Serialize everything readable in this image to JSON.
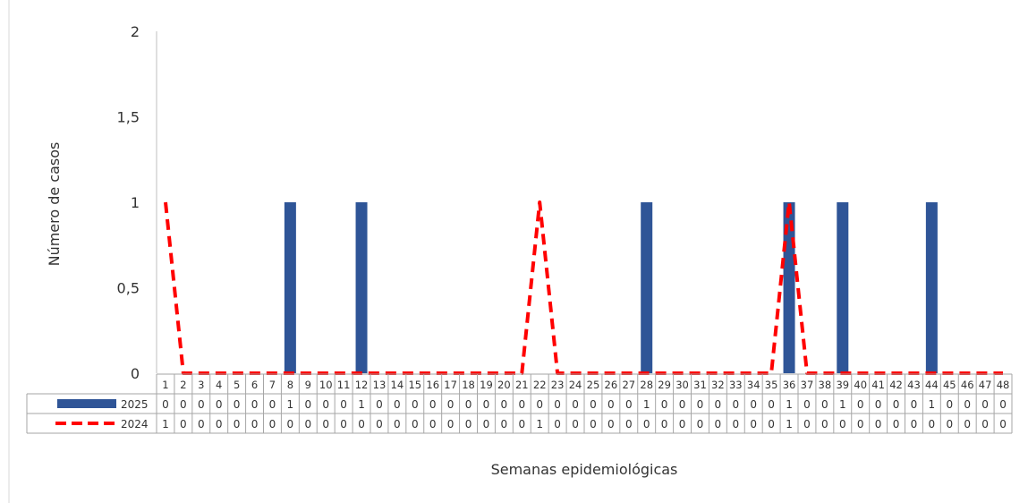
{
  "chart_data": {
    "type": "bar",
    "title": "",
    "xlabel": "Semanas epidemiológicas",
    "ylabel": "Número de casos",
    "ylim": [
      0,
      2
    ],
    "yticks": [
      "0",
      "0,5",
      "1",
      "1,5",
      "2"
    ],
    "categories": [
      "1",
      "2",
      "3",
      "4",
      "5",
      "6",
      "7",
      "8",
      "9",
      "10",
      "11",
      "12",
      "13",
      "14",
      "15",
      "16",
      "17",
      "18",
      "19",
      "20",
      "21",
      "22",
      "23",
      "24",
      "25",
      "26",
      "27",
      "28",
      "29",
      "30",
      "31",
      "32",
      "33",
      "34",
      "35",
      "36",
      "37",
      "38",
      "39",
      "40",
      "41",
      "42",
      "43",
      "44",
      "45",
      "46",
      "47",
      "48"
    ],
    "series": [
      {
        "name": "2025",
        "kind": "bar",
        "color": "#2F5597",
        "values": [
          0,
          0,
          0,
          0,
          0,
          0,
          0,
          1,
          0,
          0,
          0,
          1,
          0,
          0,
          0,
          0,
          0,
          0,
          0,
          0,
          0,
          0,
          0,
          0,
          0,
          0,
          0,
          1,
          0,
          0,
          0,
          0,
          0,
          0,
          0,
          1,
          0,
          0,
          1,
          0,
          0,
          0,
          0,
          1,
          0,
          0,
          0,
          0
        ]
      },
      {
        "name": "2024",
        "kind": "line",
        "style": "dashed",
        "color": "#FF0000",
        "values": [
          1,
          0,
          0,
          0,
          0,
          0,
          0,
          0,
          0,
          0,
          0,
          0,
          0,
          0,
          0,
          0,
          0,
          0,
          0,
          0,
          0,
          1,
          0,
          0,
          0,
          0,
          0,
          0,
          0,
          0,
          0,
          0,
          0,
          0,
          0,
          1,
          0,
          0,
          0,
          0,
          0,
          0,
          0,
          0,
          0,
          0,
          0,
          0
        ]
      }
    ],
    "grid": false,
    "legend": "data-table-below"
  }
}
